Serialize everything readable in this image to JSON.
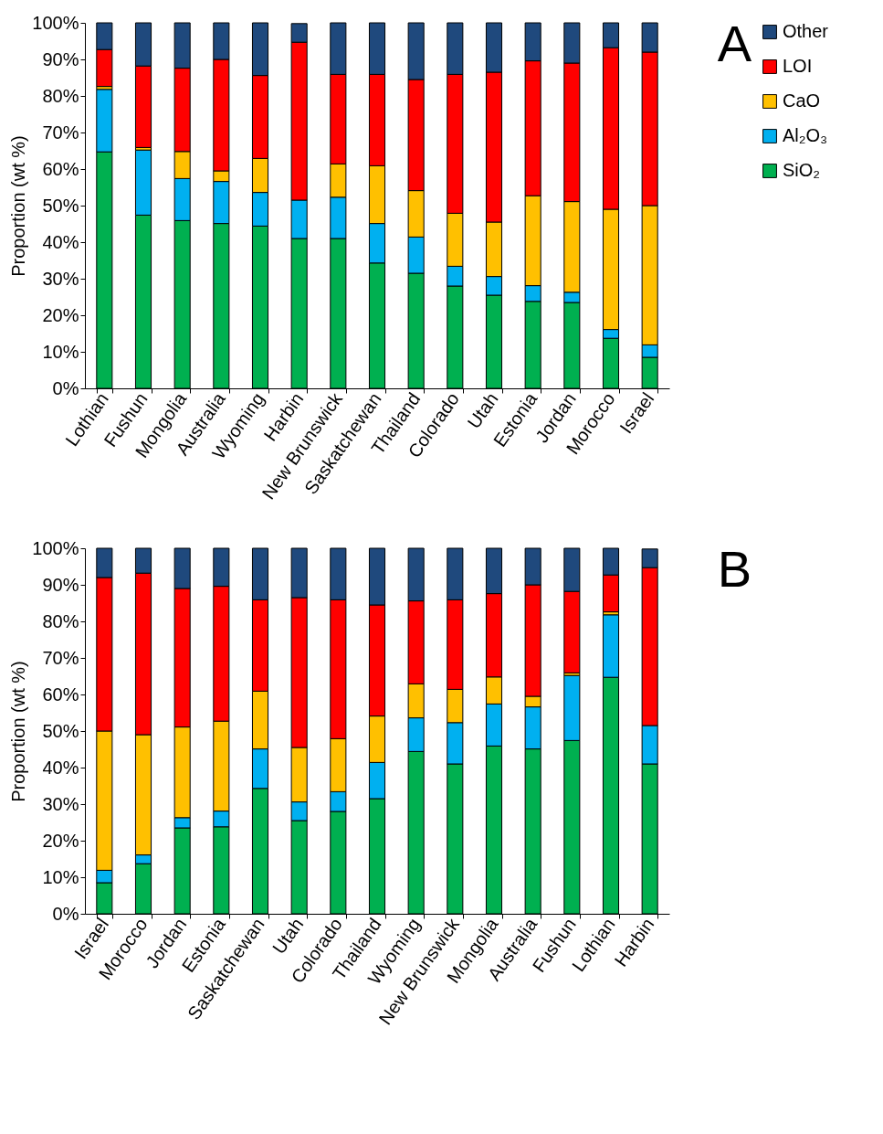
{
  "chart_data": [
    {
      "type": "bar",
      "stacked": true,
      "ylabel": "Proportion (wt %)",
      "annotations": [
        "A"
      ],
      "legend": "right",
      "grid": false,
      "categories": [
        "Lothian",
        "Fushun",
        "Mongolia",
        "Australia",
        "Wyoming",
        "Harbin",
        "New Brunswick",
        "Saskatchewan",
        "Thailand",
        "Colorado",
        "Utah",
        "Estonia",
        "Jordan",
        "Morocco",
        "Israel"
      ],
      "ylim": [
        0,
        100
      ],
      "yticks": [
        {
          "value": 0,
          "label": "0%"
        },
        {
          "value": 10,
          "label": "10%"
        },
        {
          "value": 20,
          "label": "20%"
        },
        {
          "value": 30,
          "label": "30%"
        },
        {
          "value": 40,
          "label": "40%"
        },
        {
          "value": 50,
          "label": "50%"
        },
        {
          "value": 60,
          "label": "60%"
        },
        {
          "value": 70,
          "label": "70%"
        },
        {
          "value": 80,
          "label": "80%"
        },
        {
          "value": 90,
          "label": "90%"
        },
        {
          "value": 100,
          "label": "100%"
        }
      ],
      "series": [
        {
          "name": "SiO₂",
          "color": "#00b050",
          "values": [
            64.7,
            47.4,
            45.9,
            45.1,
            44.4,
            41.0,
            41.0,
            34.3,
            31.5,
            28.0,
            25.5,
            23.8,
            23.5,
            13.7,
            8.5
          ]
        },
        {
          "name": "Al₂O₃",
          "color": "#00b0f0",
          "values": [
            17.1,
            17.8,
            11.5,
            11.5,
            9.2,
            10.5,
            11.3,
            10.8,
            9.9,
            5.4,
            5.1,
            4.3,
            2.8,
            2.4,
            3.4
          ]
        },
        {
          "name": "CaO",
          "color": "#ffc000",
          "values": [
            0.8,
            0.7,
            7.4,
            2.9,
            9.3,
            null,
            9.1,
            15.8,
            12.7,
            14.5,
            14.9,
            24.6,
            24.8,
            32.9,
            38.1
          ]
        },
        {
          "name": "LOI",
          "color": "#ff0000",
          "values": [
            10.1,
            22.3,
            22.8,
            30.5,
            22.7,
            43.2,
            24.5,
            25.0,
            30.4,
            38.0,
            41.0,
            36.9,
            37.9,
            44.2,
            42.0
          ]
        },
        {
          "name": "Other",
          "color": "#1f497d",
          "values": [
            7.3,
            11.8,
            12.4,
            10.0,
            14.4,
            5.1,
            14.1,
            14.1,
            15.5,
            14.1,
            13.5,
            10.4,
            11.0,
            6.8,
            8.0
          ]
        }
      ]
    },
    {
      "type": "bar",
      "stacked": true,
      "ylabel": "Proportion (wt %)",
      "annotations": [
        "B"
      ],
      "legend": "right",
      "grid": false,
      "categories": [
        "Israel",
        "Morocco",
        "Jordan",
        "Estonia",
        "Saskatchewan",
        "Utah",
        "Colorado",
        "Thailand",
        "Wyoming",
        "New Brunswick",
        "Mongolia",
        "Australia",
        "Fushun",
        "Lothian",
        "Harbin"
      ],
      "ylim": [
        0,
        100
      ],
      "yticks": [
        {
          "value": 0,
          "label": "0%"
        },
        {
          "value": 10,
          "label": "10%"
        },
        {
          "value": 20,
          "label": "20%"
        },
        {
          "value": 30,
          "label": "30%"
        },
        {
          "value": 40,
          "label": "40%"
        },
        {
          "value": 50,
          "label": "50%"
        },
        {
          "value": 60,
          "label": "60%"
        },
        {
          "value": 70,
          "label": "70%"
        },
        {
          "value": 80,
          "label": "80%"
        },
        {
          "value": 90,
          "label": "90%"
        },
        {
          "value": 100,
          "label": "100%"
        }
      ],
      "series": [
        {
          "name": "SiO₂",
          "color": "#00b050",
          "values": [
            8.5,
            13.7,
            23.5,
            23.8,
            34.3,
            25.5,
            28.0,
            31.5,
            44.4,
            41.0,
            45.9,
            45.1,
            47.4,
            64.7,
            41.0
          ]
        },
        {
          "name": "Al₂O₃",
          "color": "#00b0f0",
          "values": [
            3.4,
            2.4,
            2.8,
            4.3,
            10.8,
            5.1,
            5.4,
            9.9,
            9.2,
            11.3,
            11.5,
            11.5,
            17.8,
            17.1,
            10.5
          ]
        },
        {
          "name": "CaO",
          "color": "#ffc000",
          "values": [
            38.1,
            32.9,
            24.8,
            24.6,
            15.8,
            14.9,
            14.5,
            12.7,
            9.3,
            9.1,
            7.4,
            2.9,
            0.7,
            0.8,
            null
          ]
        },
        {
          "name": "LOI",
          "color": "#ff0000",
          "values": [
            42.0,
            44.2,
            37.9,
            36.9,
            25.0,
            41.0,
            38.0,
            30.4,
            22.7,
            24.5,
            22.8,
            30.5,
            22.3,
            10.1,
            43.2
          ]
        },
        {
          "name": "Other",
          "color": "#1f497d",
          "values": [
            8.0,
            6.8,
            11.0,
            10.4,
            14.1,
            13.5,
            14.1,
            15.5,
            14.4,
            14.1,
            12.4,
            10.0,
            11.8,
            7.3,
            5.1
          ]
        }
      ]
    }
  ]
}
